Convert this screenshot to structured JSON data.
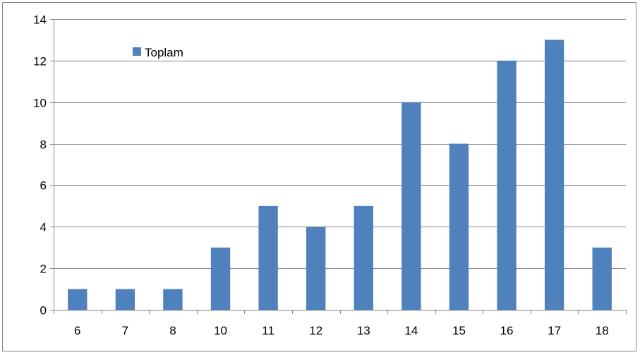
{
  "chart_data": {
    "type": "bar",
    "categories": [
      "6",
      "7",
      "8",
      "10",
      "11",
      "12",
      "13",
      "14",
      "15",
      "16",
      "17",
      "18"
    ],
    "series": [
      {
        "name": "Toplam",
        "values": [
          1,
          1,
          1,
          3,
          5,
          4,
          5,
          10,
          8,
          12,
          13,
          3
        ],
        "color": "#4f81bd"
      }
    ],
    "ylim": [
      0,
      14
    ],
    "yticks": [
      0,
      2,
      4,
      6,
      8,
      10,
      12,
      14
    ],
    "grid": true,
    "gridline_color": "#868686",
    "legend_placement": "top-left inside plot",
    "title": "",
    "xlabel": "",
    "ylabel": ""
  }
}
